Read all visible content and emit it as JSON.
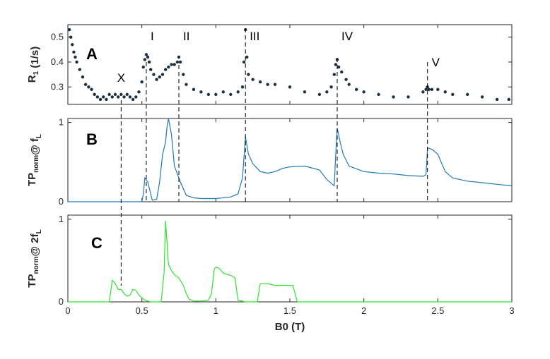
{
  "colors": {
    "panel_a_marker": "#1b2f3f",
    "panel_b_line": "#1f7ab8",
    "panel_c_line": "#2de32d",
    "axes": "#262626",
    "guide_lines": "#000000"
  },
  "chart_data": {
    "type": "line",
    "shared_x": {
      "label": "B0 (T)",
      "xlim": [
        0,
        3
      ],
      "ticks": [
        0,
        0.5,
        1,
        1.5,
        2,
        2.5,
        3
      ],
      "tick_labels": [
        "0",
        "0.5",
        "1",
        "1.5",
        "2",
        "2.5",
        "3"
      ]
    },
    "markers": [
      {
        "label": "X",
        "x": 0.36
      },
      {
        "label": "I",
        "x": 0.53
      },
      {
        "label": "II",
        "x": 0.75
      },
      {
        "label": "III",
        "x": 1.2
      },
      {
        "label": "IV",
        "x": 1.82
      },
      {
        "label": "V",
        "x": 2.43
      }
    ],
    "panels": [
      {
        "letter": "A",
        "type": "scatter",
        "ylabel_main": "R",
        "ylabel_sub": "1",
        "ylabel_tail": " (1/s)",
        "ylim": [
          0.23,
          0.55
        ],
        "yticks": [
          0.3,
          0.4,
          0.5
        ],
        "ytick_labels": [
          "0.3",
          "0.4",
          "0.5"
        ],
        "x": [
          0.01,
          0.02,
          0.03,
          0.04,
          0.05,
          0.06,
          0.08,
          0.1,
          0.12,
          0.14,
          0.16,
          0.18,
          0.2,
          0.22,
          0.24,
          0.26,
          0.28,
          0.3,
          0.32,
          0.34,
          0.36,
          0.38,
          0.4,
          0.42,
          0.44,
          0.46,
          0.48,
          0.5,
          0.51,
          0.52,
          0.53,
          0.54,
          0.55,
          0.56,
          0.58,
          0.6,
          0.62,
          0.64,
          0.66,
          0.68,
          0.7,
          0.72,
          0.74,
          0.75,
          0.76,
          0.78,
          0.8,
          0.85,
          0.9,
          0.95,
          1.0,
          1.05,
          1.1,
          1.15,
          1.18,
          1.19,
          1.2,
          1.21,
          1.22,
          1.25,
          1.3,
          1.35,
          1.4,
          1.5,
          1.6,
          1.7,
          1.75,
          1.78,
          1.8,
          1.81,
          1.82,
          1.83,
          1.85,
          1.88,
          1.9,
          1.95,
          2.0,
          2.1,
          2.2,
          2.3,
          2.4,
          2.42,
          2.43,
          2.44,
          2.46,
          2.5,
          2.55,
          2.6,
          2.7,
          2.8,
          2.9,
          2.98
        ],
        "y": [
          0.53,
          0.5,
          0.47,
          0.44,
          0.42,
          0.4,
          0.37,
          0.34,
          0.31,
          0.3,
          0.29,
          0.27,
          0.26,
          0.25,
          0.26,
          0.25,
          0.27,
          0.26,
          0.27,
          0.26,
          0.27,
          0.26,
          0.27,
          0.26,
          0.25,
          0.26,
          0.28,
          0.32,
          0.38,
          0.41,
          0.43,
          0.42,
          0.4,
          0.37,
          0.35,
          0.33,
          0.34,
          0.35,
          0.37,
          0.38,
          0.39,
          0.39,
          0.4,
          0.42,
          0.4,
          0.35,
          0.31,
          0.29,
          0.28,
          0.27,
          0.27,
          0.28,
          0.27,
          0.28,
          0.3,
          0.4,
          0.53,
          0.42,
          0.35,
          0.33,
          0.32,
          0.31,
          0.31,
          0.3,
          0.28,
          0.27,
          0.28,
          0.3,
          0.35,
          0.39,
          0.41,
          0.38,
          0.36,
          0.33,
          0.31,
          0.29,
          0.28,
          0.27,
          0.26,
          0.26,
          0.28,
          0.29,
          0.3,
          0.29,
          0.29,
          0.29,
          0.28,
          0.27,
          0.27,
          0.26,
          0.25,
          0.25
        ]
      },
      {
        "letter": "B",
        "type": "line",
        "ylabel_main": "TP",
        "ylabel_sub": "norm",
        "ylabel_tail": "@ f",
        "ylabel_sub2": "L",
        "ylim": [
          0,
          1.05
        ],
        "yticks": [
          0,
          1
        ],
        "ytick_labels": [
          "0",
          "1"
        ],
        "x": [
          0,
          0.5,
          0.51,
          0.52,
          0.54,
          0.56,
          0.57,
          0.6,
          0.62,
          0.64,
          0.66,
          0.67,
          0.68,
          0.7,
          0.72,
          0.74,
          0.76,
          0.8,
          0.85,
          0.9,
          1.0,
          1.1,
          1.15,
          1.18,
          1.2,
          1.22,
          1.25,
          1.3,
          1.35,
          1.4,
          1.45,
          1.5,
          1.6,
          1.7,
          1.75,
          1.8,
          1.81,
          1.82,
          1.84,
          1.86,
          1.9,
          2.0,
          2.1,
          2.2,
          2.3,
          2.4,
          2.42,
          2.43,
          2.46,
          2.5,
          2.55,
          2.6,
          2.7,
          2.8,
          2.9,
          3.0
        ],
        "y": [
          0,
          0,
          0.1,
          0.3,
          0.25,
          0.1,
          0.02,
          0.03,
          0.25,
          0.6,
          0.75,
          0.95,
          1.05,
          0.85,
          0.45,
          0.35,
          0.25,
          0.08,
          0.05,
          0.04,
          0.04,
          0.06,
          0.1,
          0.3,
          0.82,
          0.6,
          0.48,
          0.38,
          0.36,
          0.38,
          0.42,
          0.44,
          0.45,
          0.4,
          0.28,
          0.2,
          0.6,
          0.93,
          0.75,
          0.6,
          0.45,
          0.38,
          0.36,
          0.35,
          0.33,
          0.32,
          0.34,
          0.68,
          0.66,
          0.6,
          0.38,
          0.3,
          0.26,
          0.24,
          0.22,
          0.2
        ]
      },
      {
        "letter": "C",
        "type": "line",
        "ylabel_main": "TP",
        "ylabel_sub": "norm",
        "ylabel_tail": "@ 2f",
        "ylabel_sub2": "L",
        "ylim": [
          0,
          1.05
        ],
        "yticks": [
          0,
          1
        ],
        "ytick_labels": [
          "0",
          "1"
        ],
        "x": [
          0,
          0.28,
          0.3,
          0.32,
          0.34,
          0.36,
          0.38,
          0.4,
          0.42,
          0.44,
          0.46,
          0.48,
          0.5,
          0.52,
          0.54,
          0.56,
          0.6,
          0.63,
          0.65,
          0.66,
          0.68,
          0.7,
          0.72,
          0.75,
          0.78,
          0.8,
          0.82,
          0.85,
          0.9,
          0.95,
          0.97,
          0.99,
          1.0,
          1.02,
          1.05,
          1.1,
          1.13,
          1.15,
          1.2,
          1.25,
          1.28,
          1.3,
          1.35,
          1.4,
          1.45,
          1.5,
          1.52,
          1.55,
          1.6,
          2.0,
          3.0
        ],
        "y": [
          0,
          0,
          0.26,
          0.22,
          0.15,
          0.15,
          0.1,
          0.07,
          0.08,
          0.15,
          0.14,
          0.08,
          0.05,
          0.02,
          0.01,
          0,
          0,
          0,
          0.35,
          0.98,
          0.45,
          0.38,
          0.33,
          0.29,
          0.2,
          0.1,
          0.03,
          0.01,
          0.01,
          0.02,
          0.1,
          0.4,
          0.42,
          0.41,
          0.35,
          0.32,
          0.29,
          0.02,
          0,
          0,
          0,
          0.22,
          0.22,
          0.2,
          0.2,
          0.2,
          0.2,
          0,
          0,
          0,
          0
        ]
      }
    ]
  }
}
